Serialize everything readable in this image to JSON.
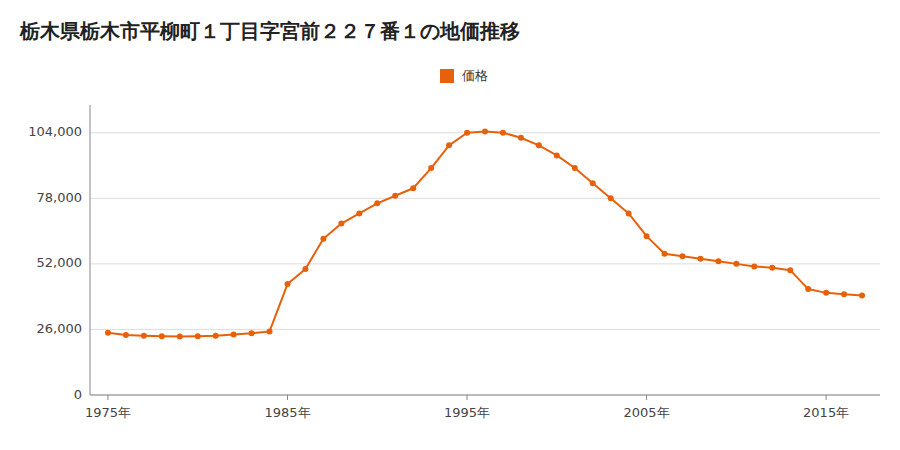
{
  "chart_data": {
    "type": "line",
    "title": "栃木県栃木市平柳町１丁目字宮前２２７番１の地価推移",
    "x": [
      1975,
      1976,
      1977,
      1978,
      1979,
      1980,
      1981,
      1982,
      1983,
      1984,
      1985,
      1986,
      1987,
      1988,
      1989,
      1990,
      1991,
      1992,
      1993,
      1994,
      1995,
      1996,
      1997,
      1998,
      1999,
      2000,
      2001,
      2002,
      2003,
      2004,
      2005,
      2006,
      2007,
      2008,
      2009,
      2010,
      2011,
      2012,
      2013,
      2014,
      2015,
      2016,
      2017
    ],
    "series": [
      {
        "name": "価格",
        "color": "#e8610a",
        "marker": "circle",
        "line_style": "solid",
        "values": [
          24700,
          23800,
          23500,
          23300,
          23200,
          23300,
          23500,
          24000,
          24500,
          25200,
          44000,
          50000,
          62000,
          68000,
          72000,
          76000,
          79000,
          82000,
          90000,
          99000,
          104000,
          104500,
          104000,
          102000,
          99000,
          95000,
          90000,
          84000,
          78000,
          72000,
          63000,
          56000,
          55000,
          54000,
          53000,
          52000,
          51000,
          50500,
          49500,
          42000,
          40500,
          40000,
          39500
        ]
      }
    ],
    "xlim": [
      1974,
      2018
    ],
    "ylim": [
      0,
      115000
    ],
    "xticks": [
      {
        "value": 1975,
        "label": "1975年"
      },
      {
        "value": 1985,
        "label": "1985年"
      },
      {
        "value": 1995,
        "label": "1995年"
      },
      {
        "value": 2005,
        "label": "2005年"
      },
      {
        "value": 2015,
        "label": "2015年"
      }
    ],
    "yticks": [
      0,
      {
        "value": 26000,
        "label": "26,000"
      },
      {
        "value": 52000,
        "label": "52,000"
      },
      {
        "value": 78000,
        "label": "78,000"
      },
      {
        "value": 104000,
        "label": "104,000"
      }
    ],
    "grid": true,
    "legend": "top"
  }
}
